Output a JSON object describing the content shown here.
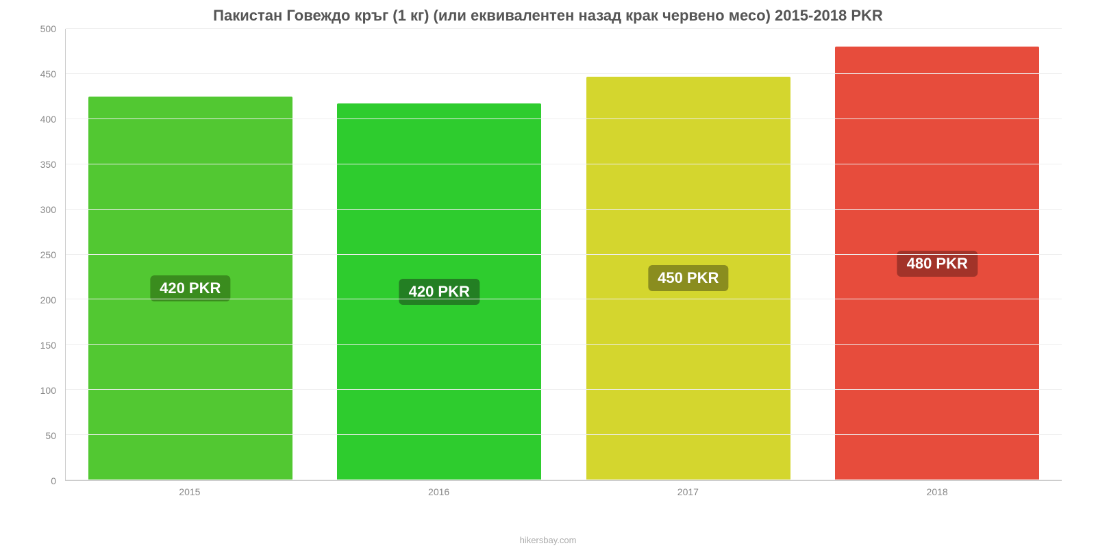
{
  "chart": {
    "type": "bar",
    "title": "Пакистан Говеждо кръг (1 кг) (или еквивалентен назад крак червено месо) 2015-2018 PKR",
    "title_fontsize": 22,
    "title_color": "#555555",
    "source": "hikersbay.com",
    "background_color": "#ffffff",
    "grid_color": "#eeeeee",
    "axis_line_color": "#cccccc",
    "tick_label_color": "#888888",
    "tick_label_fontsize": 14,
    "y": {
      "min": 0,
      "max": 500,
      "tick_step": 50,
      "ticks": [
        0,
        50,
        100,
        150,
        200,
        250,
        300,
        350,
        400,
        450,
        500
      ]
    },
    "x": {
      "categories": [
        "2015",
        "2016",
        "2017",
        "2018"
      ]
    },
    "bar_width_pct": 82,
    "bars": [
      {
        "value": 425,
        "label": "420 PKR",
        "fill": "#52c832",
        "label_bg": "#3a8c1e"
      },
      {
        "value": 417,
        "label": "420 PKR",
        "fill": "#2ecc2e",
        "label_bg": "#237f23"
      },
      {
        "value": 447,
        "label": "450 PKR",
        "fill": "#d4d62e",
        "label_bg": "#8a8d1f"
      },
      {
        "value": 480,
        "label": "480 PKR",
        "fill": "#e74c3c",
        "label_bg": "#a23329"
      }
    ],
    "bar_label_fontsize": 22,
    "bar_label_color": "#ffffff"
  }
}
